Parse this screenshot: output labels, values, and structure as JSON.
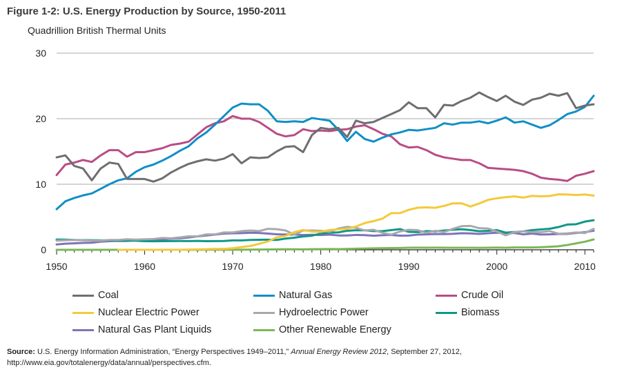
{
  "figure": {
    "title": "Figure 1-2: U.S. Energy Production by Source, 1950-2011",
    "units": "Quadrillion British Thermal Units"
  },
  "source": {
    "label": "Source:",
    "text_before": " U.S. Energy Information Administration, “Energy Perspectives 1949–2011,” ",
    "publication": "Annual Energy Review 2012",
    "text_after": ", September 27, 2012,",
    "url": "http://www.eia.gov/totalenergy/data/annual/perspectives.cfm."
  },
  "chart_data": {
    "type": "line",
    "title": "Figure 1-2: U.S. Energy Production by Source, 1950-2011",
    "ylabel": "Quadrillion British Thermal Units",
    "xlabel": "",
    "xlim": [
      1950,
      2011
    ],
    "ylim": [
      0,
      30
    ],
    "x_ticks": [
      1950,
      1960,
      1970,
      1980,
      1990,
      2000,
      2010
    ],
    "y_ticks": [
      0,
      10,
      20,
      30
    ],
    "grid": "horizontal",
    "legend_position": "bottom",
    "x": [
      1950,
      1951,
      1952,
      1953,
      1954,
      1955,
      1956,
      1957,
      1958,
      1959,
      1960,
      1961,
      1962,
      1963,
      1964,
      1965,
      1966,
      1967,
      1968,
      1969,
      1970,
      1971,
      1972,
      1973,
      1974,
      1975,
      1976,
      1977,
      1978,
      1979,
      1980,
      1981,
      1982,
      1983,
      1984,
      1985,
      1986,
      1987,
      1988,
      1989,
      1990,
      1991,
      1992,
      1993,
      1994,
      1995,
      1996,
      1997,
      1998,
      1999,
      2000,
      2001,
      2002,
      2003,
      2004,
      2005,
      2006,
      2007,
      2008,
      2009,
      2010,
      2011
    ],
    "series": [
      {
        "name": "Coal",
        "color": "#6d6e71",
        "values": [
          14.1,
          14.4,
          12.8,
          12.4,
          10.6,
          12.4,
          13.3,
          13.1,
          10.8,
          10.8,
          10.8,
          10.4,
          10.9,
          11.8,
          12.5,
          13.1,
          13.5,
          13.8,
          13.6,
          13.9,
          14.6,
          13.2,
          14.1,
          14.0,
          14.1,
          15.0,
          15.7,
          15.8,
          14.9,
          17.5,
          18.6,
          18.4,
          18.6,
          17.2,
          19.7,
          19.3,
          19.5,
          20.1,
          20.7,
          21.3,
          22.5,
          21.6,
          21.6,
          20.2,
          22.1,
          22.0,
          22.7,
          23.2,
          24.0,
          23.3,
          22.7,
          23.5,
          22.6,
          22.1,
          22.9,
          23.2,
          23.8,
          23.5,
          23.9,
          21.6,
          22.0,
          22.2
        ]
      },
      {
        "name": "Natural Gas",
        "color": "#0f8fc6",
        "values": [
          6.2,
          7.4,
          7.9,
          8.3,
          8.6,
          9.3,
          10.0,
          10.6,
          10.9,
          11.9,
          12.6,
          13.0,
          13.6,
          14.3,
          15.1,
          15.8,
          17.0,
          17.9,
          19.1,
          20.4,
          21.7,
          22.3,
          22.2,
          22.2,
          21.2,
          19.6,
          19.5,
          19.6,
          19.5,
          20.1,
          19.9,
          19.7,
          18.3,
          16.6,
          18.0,
          16.9,
          16.5,
          17.1,
          17.6,
          17.9,
          18.3,
          18.2,
          18.4,
          18.6,
          19.3,
          19.1,
          19.4,
          19.4,
          19.6,
          19.3,
          19.7,
          20.2,
          19.4,
          19.6,
          19.1,
          18.6,
          19.0,
          19.8,
          20.7,
          21.1,
          21.8,
          23.5
        ]
      },
      {
        "name": "Crude Oil",
        "color": "#b94c86",
        "values": [
          11.4,
          13.0,
          13.3,
          13.7,
          13.4,
          14.4,
          15.2,
          15.2,
          14.2,
          14.9,
          14.9,
          15.2,
          15.5,
          16.0,
          16.2,
          16.5,
          17.6,
          18.7,
          19.3,
          19.6,
          20.4,
          20.0,
          20.0,
          19.5,
          18.6,
          17.7,
          17.3,
          17.5,
          18.4,
          18.1,
          18.2,
          18.1,
          18.3,
          18.4,
          18.8,
          19.0,
          18.4,
          17.7,
          17.3,
          16.1,
          15.6,
          15.7,
          15.2,
          14.5,
          14.1,
          13.9,
          13.7,
          13.7,
          13.2,
          12.5,
          12.4,
          12.3,
          12.2,
          12.0,
          11.6,
          11.0,
          10.8,
          10.7,
          10.5,
          11.3,
          11.6,
          12.0
        ]
      },
      {
        "name": "Nuclear Electric Power",
        "color": "#f4c93a",
        "values": [
          null,
          null,
          null,
          null,
          null,
          null,
          null,
          0.0,
          0.0,
          0.0,
          0.0,
          0.0,
          0.0,
          0.0,
          0.0,
          0.04,
          0.06,
          0.09,
          0.14,
          0.15,
          0.24,
          0.41,
          0.58,
          0.91,
          1.27,
          1.9,
          2.11,
          2.7,
          3.02,
          2.78,
          2.74,
          3.01,
          3.13,
          3.2,
          3.55,
          4.08,
          4.38,
          4.75,
          5.59,
          5.6,
          6.1,
          6.42,
          6.48,
          6.41,
          6.69,
          7.08,
          7.09,
          6.6,
          7.07,
          7.61,
          7.86,
          8.03,
          8.14,
          7.96,
          8.22,
          8.16,
          8.21,
          8.46,
          8.43,
          8.36,
          8.43,
          8.26
        ]
      },
      {
        "name": "Hydroelectric Power",
        "color": "#a7a9ac",
        "values": [
          1.4,
          1.45,
          1.5,
          1.45,
          1.4,
          1.4,
          1.5,
          1.5,
          1.6,
          1.55,
          1.6,
          1.65,
          1.8,
          1.75,
          1.9,
          2.05,
          2.05,
          2.35,
          2.35,
          2.65,
          2.65,
          2.85,
          2.95,
          2.85,
          3.2,
          3.15,
          2.95,
          2.3,
          2.95,
          2.95,
          2.9,
          2.75,
          3.25,
          3.5,
          3.35,
          2.95,
          3.05,
          2.6,
          2.3,
          2.8,
          3.05,
          3.0,
          2.6,
          2.9,
          2.7,
          3.2,
          3.6,
          3.65,
          3.3,
          3.25,
          2.8,
          2.2,
          2.7,
          2.8,
          2.7,
          2.7,
          2.85,
          2.45,
          2.5,
          2.65,
          2.55,
          3.2
        ]
      },
      {
        "name": "Biomass",
        "color": "#0e9887",
        "values": [
          1.56,
          1.55,
          1.5,
          1.48,
          1.46,
          1.45,
          1.42,
          1.4,
          1.4,
          1.38,
          1.32,
          1.3,
          1.32,
          1.33,
          1.34,
          1.33,
          1.35,
          1.32,
          1.33,
          1.34,
          1.43,
          1.43,
          1.5,
          1.53,
          1.54,
          1.5,
          1.71,
          1.84,
          2.04,
          2.15,
          2.48,
          2.6,
          2.66,
          2.9,
          2.98,
          2.97,
          2.86,
          2.84,
          3.0,
          3.16,
          2.73,
          2.7,
          2.85,
          2.8,
          2.94,
          3.07,
          3.13,
          3.01,
          2.83,
          2.89,
          3.01,
          2.62,
          2.71,
          2.81,
          3.0,
          3.1,
          3.21,
          3.47,
          3.85,
          3.9,
          4.3,
          4.51
        ]
      },
      {
        "name": "Natural Gas Plant Liquids",
        "color": "#7e73b6",
        "values": [
          0.82,
          0.93,
          0.99,
          1.05,
          1.08,
          1.24,
          1.32,
          1.36,
          1.34,
          1.45,
          1.46,
          1.52,
          1.59,
          1.69,
          1.75,
          1.88,
          2.04,
          2.18,
          2.32,
          2.47,
          2.51,
          2.54,
          2.6,
          2.57,
          2.47,
          2.37,
          2.33,
          2.33,
          2.25,
          2.29,
          2.25,
          2.31,
          2.19,
          2.18,
          2.27,
          2.24,
          2.15,
          2.22,
          2.26,
          2.16,
          2.17,
          2.31,
          2.36,
          2.41,
          2.39,
          2.44,
          2.53,
          2.5,
          2.42,
          2.53,
          2.61,
          2.55,
          2.56,
          2.35,
          2.47,
          2.33,
          2.36,
          2.41,
          2.42,
          2.57,
          2.69,
          2.9
        ]
      },
      {
        "name": "Other Renewable Energy",
        "color": "#7ab856",
        "values": [
          0.0,
          0.0,
          0.0,
          0.0,
          0.0,
          0.0,
          0.0,
          0.0,
          0.0,
          0.0,
          0.0,
          0.0,
          0.0,
          0.0,
          0.0,
          0.0,
          0.0,
          0.01,
          0.01,
          0.01,
          0.01,
          0.01,
          0.03,
          0.04,
          0.05,
          0.07,
          0.08,
          0.08,
          0.07,
          0.09,
          0.11,
          0.12,
          0.1,
          0.13,
          0.17,
          0.2,
          0.22,
          0.25,
          0.26,
          0.28,
          0.32,
          0.33,
          0.32,
          0.33,
          0.32,
          0.31,
          0.32,
          0.32,
          0.3,
          0.32,
          0.34,
          0.31,
          0.35,
          0.36,
          0.36,
          0.4,
          0.46,
          0.54,
          0.73,
          0.98,
          1.23,
          1.58
        ]
      }
    ]
  }
}
